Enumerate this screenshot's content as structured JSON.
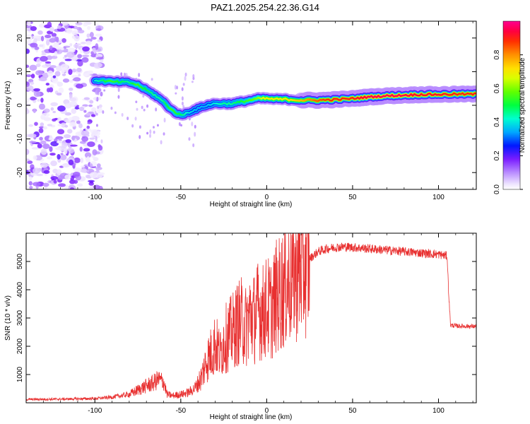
{
  "figure_title": "PAZ1.2025.254.22.36.G14",
  "chart_data": [
    {
      "type": "heatmap",
      "title": "PAZ1.2025.254.22.36.G14",
      "xlabel": "Height of straight line (km)",
      "ylabel": "Frequency (Hz)",
      "xlim": [
        -140,
        122
      ],
      "ylim": [
        -25,
        25
      ],
      "x_ticks": [
        -100,
        -50,
        0,
        50,
        100
      ],
      "x_tick_labels": [
        "-100",
        "-50",
        "0",
        "50",
        "100"
      ],
      "y_ticks": [
        -20,
        -10,
        0,
        10,
        20
      ],
      "y_tick_labels": [
        "-20",
        "-10",
        "0",
        "10",
        "20"
      ],
      "colorbar": {
        "label": "Normalized spectral amplitude",
        "range": [
          0,
          1
        ],
        "ticks": [
          0,
          0.2,
          0.4,
          0.6,
          0.8
        ],
        "tick_labels": [
          "0.0",
          "0.2",
          "0.4",
          "0.6",
          "0.8"
        ]
      },
      "ridge": {
        "name": "dominant frequency",
        "x": [
          -100,
          -90,
          -80,
          -75,
          -70,
          -65,
          -60,
          -55,
          -50,
          -45,
          -40,
          -35,
          -30,
          -25,
          -20,
          -15,
          -10,
          -5,
          0,
          5,
          10,
          20,
          30,
          40,
          50,
          60,
          70,
          80,
          90,
          100,
          110,
          122
        ],
        "y": [
          7.5,
          7.0,
          6.8,
          6.0,
          4.5,
          3.0,
          1.0,
          -1.5,
          -3.0,
          -2.0,
          -1.0,
          0,
          0.5,
          0.5,
          0.5,
          1.0,
          1.5,
          2.0,
          2.0,
          1.8,
          1.8,
          1.5,
          1.5,
          1.7,
          2.0,
          2.5,
          2.8,
          3.0,
          3.2,
          3.2,
          3.3,
          3.3
        ],
        "amplitude": [
          0.4,
          0.55,
          0.45,
          0.55,
          0.5,
          0.45,
          0.45,
          0.55,
          0.5,
          0.4,
          0.35,
          0.35,
          0.4,
          0.45,
          0.45,
          0.5,
          0.55,
          0.6,
          0.7,
          0.7,
          0.7,
          0.75,
          0.85,
          0.9,
          0.9,
          0.95,
          0.95,
          0.95,
          0.92,
          0.92,
          0.9,
          0.9
        ]
      },
      "noise_region": {
        "x_range": [
          -140,
          -100
        ],
        "y_range": [
          -25,
          25
        ],
        "amplitude_range": [
          0.02,
          0.2
        ]
      }
    },
    {
      "type": "line",
      "xlabel": "Height of straight line (km)",
      "ylabel": "SNR (10 * v/v)",
      "xlim": [
        -140,
        122
      ],
      "ylim": [
        0,
        6000
      ],
      "x_ticks": [
        -100,
        -50,
        0,
        50,
        100
      ],
      "x_tick_labels": [
        "-100",
        "-50",
        "0",
        "50",
        "100"
      ],
      "y_ticks": [
        1000,
        2000,
        3000,
        4000,
        5000
      ],
      "y_tick_labels": [
        "1000",
        "2000",
        "3000",
        "4000",
        "5000"
      ],
      "series": [
        {
          "name": "SNR",
          "color": "#e83030",
          "x": [
            -140,
            -120,
            -100,
            -90,
            -80,
            -75,
            -70,
            -66,
            -63,
            -60,
            -58,
            -55,
            -52,
            -50,
            -48,
            -45,
            -42,
            -40,
            -38,
            -35,
            -32,
            -30,
            -27,
            -25,
            -22,
            -20,
            -17,
            -15,
            -12,
            -10,
            -7,
            -5,
            -2,
            0,
            3,
            5,
            8,
            10,
            13,
            15,
            18,
            20,
            25,
            30,
            35,
            40,
            45,
            50,
            60,
            70,
            80,
            90,
            100,
            105,
            106,
            107,
            110,
            122
          ],
          "y": [
            120,
            130,
            150,
            200,
            300,
            450,
            600,
            700,
            820,
            750,
            300,
            250,
            280,
            300,
            320,
            380,
            500,
            700,
            900,
            1500,
            1800,
            2100,
            1700,
            2200,
            2400,
            2500,
            2800,
            2900,
            2700,
            3100,
            3000,
            3300,
            3200,
            3400,
            3300,
            3700,
            3900,
            4100,
            4300,
            4500,
            4700,
            4800,
            5100,
            5350,
            5450,
            5500,
            5520,
            5500,
            5450,
            5400,
            5350,
            5300,
            5250,
            5200,
            3800,
            2750,
            2720,
            2700
          ]
        }
      ]
    }
  ]
}
